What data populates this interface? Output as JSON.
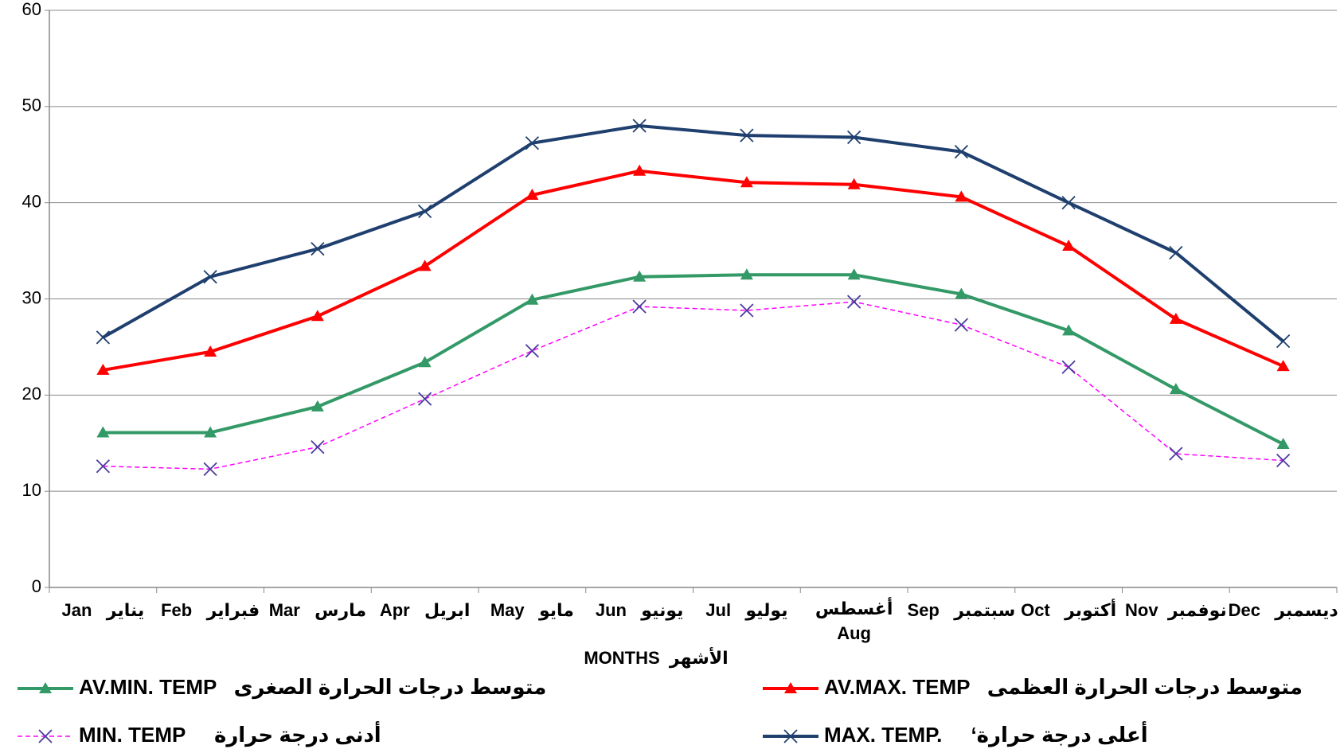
{
  "chart_data": {
    "type": "line",
    "x_label": "MONTHS  الأشهر",
    "categories": [
      "Jan   يناير",
      "Feb   فبراير",
      "Mar   مارس",
      "Apr   ابريل",
      "May   مايو",
      "Jun   يونيو",
      "Jul   يوليو",
      "أغسطس\nAug",
      "Sep   سبتمبر",
      "Oct   أكتوبر",
      "Nov  نوفمبر",
      "Dec   ديسمبر"
    ],
    "ylim": [
      0,
      60
    ],
    "yticks": [
      0,
      10,
      20,
      30,
      40,
      50,
      60
    ],
    "grid": true,
    "series": [
      {
        "name": "AV.MIN. TEMP   متوسط درجات الحرارة الصغرى",
        "color": "#339966",
        "marker": "triangle",
        "dashed": false,
        "values": [
          16.1,
          16.1,
          18.8,
          23.4,
          29.9,
          32.3,
          32.5,
          32.5,
          30.5,
          26.7,
          20.6,
          14.9
        ]
      },
      {
        "name": "AV.MAX. TEMP   متوسط درجات الحرارة العظمى",
        "color": "#ff0000",
        "marker": "triangle",
        "dashed": false,
        "values": [
          22.6,
          24.5,
          28.2,
          33.4,
          40.8,
          43.3,
          42.1,
          41.9,
          40.6,
          35.5,
          27.9,
          23
        ]
      },
      {
        "name": "MIN. TEMP     أدنى درجة حرارة",
        "color": "#ff00ff",
        "marker": "x",
        "marker_color": "#4b3aa0",
        "dashed": true,
        "values": [
          12.6,
          12.3,
          14.6,
          19.6,
          24.6,
          29.2,
          28.8,
          29.7,
          27.3,
          22.9,
          13.9,
          13.2
        ]
      },
      {
        "name": "MAX. TEMP.     ‘أعلى درجة حرارة",
        "color": "#1f3f6e",
        "marker": "x",
        "dashed": false,
        "values": [
          26,
          32.3,
          35.2,
          39.1,
          46.2,
          48,
          47,
          46.8,
          45.3,
          40,
          34.8,
          25.6
        ]
      }
    ]
  }
}
